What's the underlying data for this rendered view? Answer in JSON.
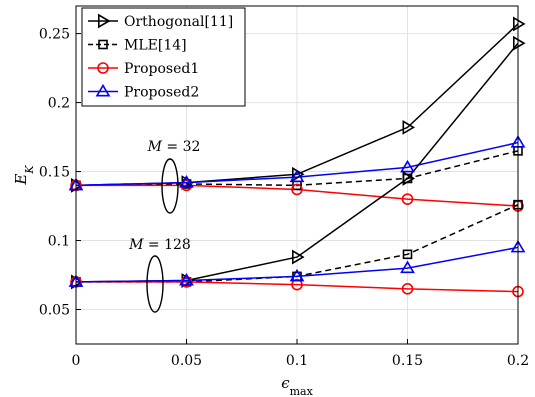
{
  "chart_data": {
    "type": "line",
    "x": [
      0,
      0.05,
      0.1,
      0.15,
      0.2
    ],
    "xlabel": "ϵmax",
    "ylabel": "EK",
    "xlim": [
      0,
      0.2
    ],
    "ylim": [
      0.025,
      0.27
    ],
    "x_ticks": [
      "0",
      "0.05",
      "0.1",
      "0.15",
      "0.2"
    ],
    "y_ticks": [
      "0.05",
      "0.1",
      "0.15",
      "0.2",
      "0.25"
    ],
    "grid": true,
    "legend_position": "top-left",
    "legend": [
      {
        "name": "Orthogonal[11]",
        "color": "#000000",
        "marker": "triangle-right",
        "dash": "solid"
      },
      {
        "name": "MLE[14]",
        "color": "#000000",
        "marker": "square",
        "dash": "dashed"
      },
      {
        "name": "Proposed1",
        "color": "#ff0000",
        "marker": "circle",
        "dash": "solid"
      },
      {
        "name": "Proposed2",
        "color": "#0000ff",
        "marker": "triangle-up",
        "dash": "solid"
      }
    ],
    "series": [
      {
        "name": "Orthogonal[11]",
        "group": "M = 32",
        "color": "#000000",
        "marker": "triangle-right",
        "dash": "solid",
        "values": [
          0.14,
          0.142,
          0.148,
          0.182,
          0.257
        ]
      },
      {
        "name": "MLE[14]",
        "group": "M = 32",
        "color": "#000000",
        "marker": "square",
        "dash": "dashed",
        "values": [
          0.14,
          0.141,
          0.14,
          0.145,
          0.165
        ]
      },
      {
        "name": "Proposed1",
        "group": "M = 32",
        "color": "#ff0000",
        "marker": "circle",
        "dash": "solid",
        "values": [
          0.14,
          0.14,
          0.137,
          0.13,
          0.125
        ]
      },
      {
        "name": "Proposed2",
        "group": "M = 32",
        "color": "#0000ff",
        "marker": "triangle-up",
        "dash": "solid",
        "values": [
          0.14,
          0.142,
          0.146,
          0.153,
          0.171
        ]
      },
      {
        "name": "Orthogonal[11]",
        "group": "M = 128",
        "color": "#000000",
        "marker": "triangle-right",
        "dash": "solid",
        "values": [
          0.07,
          0.071,
          0.088,
          0.145,
          0.243
        ]
      },
      {
        "name": "MLE[14]",
        "group": "M = 128",
        "color": "#000000",
        "marker": "square",
        "dash": "dashed",
        "values": [
          0.07,
          0.07,
          0.074,
          0.09,
          0.126
        ]
      },
      {
        "name": "Proposed1",
        "group": "M = 128",
        "color": "#ff0000",
        "marker": "circle",
        "dash": "solid",
        "values": [
          0.07,
          0.07,
          0.068,
          0.065,
          0.063
        ]
      },
      {
        "name": "Proposed2",
        "group": "M = 128",
        "color": "#0000ff",
        "marker": "triangle-up",
        "dash": "solid",
        "values": [
          0.07,
          0.071,
          0.074,
          0.08,
          0.095
        ]
      }
    ],
    "annotations": [
      {
        "label": "M = 32",
        "group": "M = 32"
      },
      {
        "label": "M = 128",
        "group": "M = 128"
      }
    ]
  }
}
